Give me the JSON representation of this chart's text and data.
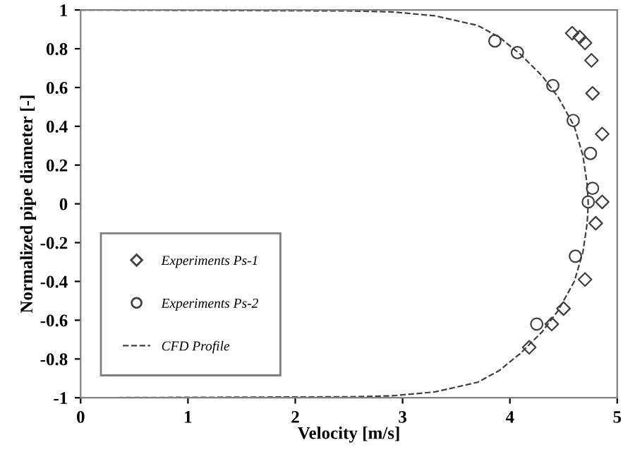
{
  "chart_data": {
    "type": "scatter",
    "xlabel": "Velocity [m/s]",
    "ylabel": "Normalized pipe diameter [-]",
    "xlim": [
      0,
      5
    ],
    "xticks": [
      0,
      1,
      2,
      3,
      4,
      5
    ],
    "ylim": [
      -1,
      1
    ],
    "yticks": [
      -1,
      -0.8,
      -0.6,
      -0.4,
      -0.2,
      0,
      0.2,
      0.4,
      0.6,
      0.8,
      1
    ],
    "grid": false,
    "legend": "bottom left",
    "series": [
      {
        "name": "Experiments Ps-1",
        "marker": "diamond",
        "color": "#404040",
        "x": [
          4.58,
          4.65,
          4.7,
          4.76,
          4.77,
          4.86,
          4.86,
          4.8,
          4.7,
          4.5,
          4.39,
          4.18
        ],
        "values": [
          0.88,
          0.86,
          0.83,
          0.74,
          0.57,
          0.36,
          0.01,
          -0.1,
          -0.39,
          -0.54,
          -0.62,
          -0.74
        ]
      },
      {
        "name": "Experiments Ps-2",
        "marker": "circle",
        "color": "#404040",
        "x": [
          3.86,
          4.07,
          4.4,
          4.59,
          4.75,
          4.77,
          4.73,
          4.61,
          4.25
        ],
        "values": [
          0.84,
          0.78,
          0.61,
          0.43,
          0.26,
          0.08,
          0.01,
          -0.27,
          -0.62
        ]
      },
      {
        "name": "CFD Profile",
        "type": "line",
        "line_style": "dashed",
        "marker": "none",
        "color": "#404040",
        "x": [
          0,
          2.5,
          2.9,
          3.3,
          3.7,
          3.9,
          4.1,
          4.3,
          4.45,
          4.6,
          4.68,
          4.72,
          4.73,
          4.72,
          4.68,
          4.6,
          4.45,
          4.3,
          4.1,
          3.9,
          3.7,
          3.3,
          2.9,
          2.5,
          0
        ],
        "values": [
          1,
          0.995,
          0.99,
          0.97,
          0.92,
          0.86,
          0.77,
          0.66,
          0.55,
          0.4,
          0.25,
          0.1,
          0,
          -0.1,
          -0.25,
          -0.4,
          -0.55,
          -0.66,
          -0.77,
          -0.86,
          -0.92,
          -0.97,
          -0.99,
          -0.995,
          -1
        ]
      }
    ]
  }
}
